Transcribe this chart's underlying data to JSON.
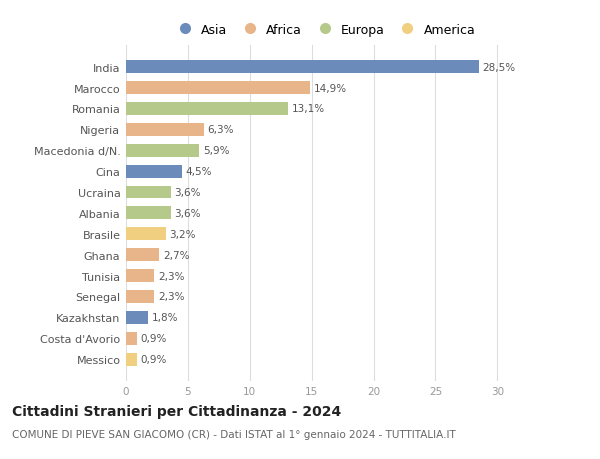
{
  "countries": [
    "India",
    "Marocco",
    "Romania",
    "Nigeria",
    "Macedonia d/N.",
    "Cina",
    "Ucraina",
    "Albania",
    "Brasile",
    "Ghana",
    "Tunisia",
    "Senegal",
    "Kazakhstan",
    "Costa d'Avorio",
    "Messico"
  ],
  "values": [
    28.5,
    14.9,
    13.1,
    6.3,
    5.9,
    4.5,
    3.6,
    3.6,
    3.2,
    2.7,
    2.3,
    2.3,
    1.8,
    0.9,
    0.9
  ],
  "labels": [
    "28,5%",
    "14,9%",
    "13,1%",
    "6,3%",
    "5,9%",
    "4,5%",
    "3,6%",
    "3,6%",
    "3,2%",
    "2,7%",
    "2,3%",
    "2,3%",
    "1,8%",
    "0,9%",
    "0,9%"
  ],
  "continents": [
    "Asia",
    "Africa",
    "Europa",
    "Africa",
    "Europa",
    "Asia",
    "Europa",
    "Europa",
    "America",
    "Africa",
    "Africa",
    "Africa",
    "Asia",
    "Africa",
    "America"
  ],
  "colors": {
    "Asia": "#6b8cba",
    "Africa": "#e8b48a",
    "Europa": "#b5c98a",
    "America": "#f0d080"
  },
  "legend_order": [
    "Asia",
    "Africa",
    "Europa",
    "America"
  ],
  "legend_colors": [
    "#6b8cba",
    "#e8b48a",
    "#b5c98a",
    "#f0d080"
  ],
  "xlim": [
    0,
    32
  ],
  "xticks": [
    0,
    5,
    10,
    15,
    20,
    25,
    30
  ],
  "title": "Cittadini Stranieri per Cittadinanza - 2024",
  "subtitle": "COMUNE DI PIEVE SAN GIACOMO (CR) - Dati ISTAT al 1° gennaio 2024 - TUTTITALIA.IT",
  "background_color": "#ffffff",
  "bar_height": 0.62,
  "label_fontsize": 7.5,
  "title_fontsize": 10,
  "subtitle_fontsize": 7.5,
  "tick_fontsize": 7.5,
  "ytick_fontsize": 8,
  "legend_fontsize": 9,
  "grid_color": "#dddddd"
}
